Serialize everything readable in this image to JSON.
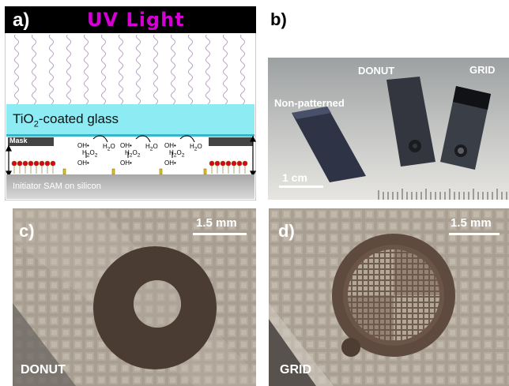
{
  "panel_a": {
    "label": "a)",
    "header": "UV Light",
    "glass_main": "TiO",
    "glass_sub": "2",
    "glass_rest": "-coated glass",
    "mask": "Mask",
    "substrate": "Initiator SAM on silicon",
    "oh": "OH",
    "h2o": "H",
    "h2o_sub": "2",
    "h2o_tail": "O",
    "h2o2_a": "H",
    "h2o2_sub1": "2",
    "h2o2_b": "O",
    "h2o2_sub2": "2"
  },
  "panel_b": {
    "label": "b)",
    "sample_left": "Non-patterned",
    "sample_mid": "DONUT",
    "sample_right": "GRID",
    "scale": "1 cm"
  },
  "panel_c": {
    "label": "c)",
    "scale": "1.5 mm",
    "caption": "DONUT"
  },
  "panel_d": {
    "label": "d)",
    "scale": "1.5 mm",
    "caption": "GRID"
  },
  "colors": {
    "uv_text": "#d400d4",
    "glass": "#7fe9f2",
    "dots": "#e0001a",
    "wave": "#b9a5c6"
  }
}
